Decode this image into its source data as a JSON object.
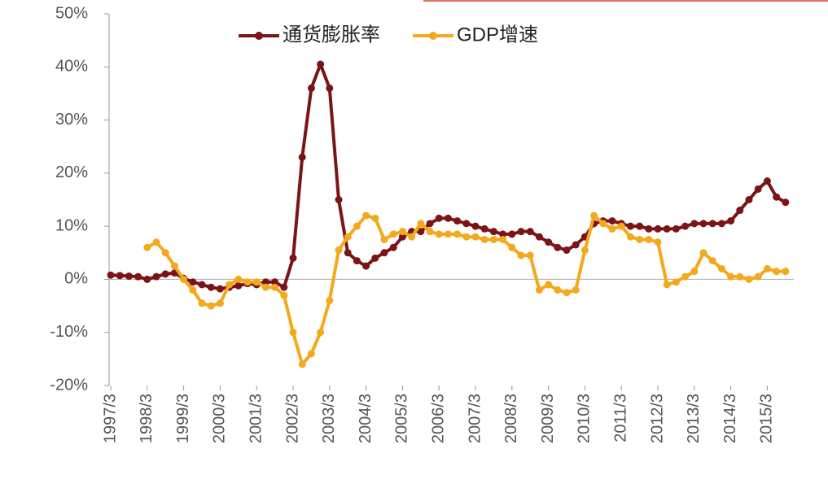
{
  "chart_data": {
    "type": "line",
    "categories": [
      "1997/3",
      null,
      null,
      null,
      "1998/3",
      null,
      null,
      null,
      "1999/3",
      null,
      null,
      null,
      "2000/3",
      null,
      null,
      null,
      "2001/3",
      null,
      null,
      null,
      "2002/3",
      null,
      null,
      null,
      "2003/3",
      null,
      null,
      null,
      "2004/3",
      null,
      null,
      null,
      "2005/3",
      null,
      null,
      null,
      "2006/3",
      null,
      null,
      null,
      "2007/3",
      null,
      null,
      null,
      "2008/3",
      null,
      null,
      null,
      "2009/3",
      null,
      null,
      null,
      "2010/3",
      null,
      null,
      null,
      "2011/3",
      null,
      null,
      null,
      "2012/3",
      null,
      null,
      null,
      "2013/3",
      null,
      null,
      null,
      "2014/3",
      null,
      null,
      null,
      "2015/3",
      null,
      null
    ],
    "series": [
      {
        "name": "通货膨胀率",
        "color": "#7b1416",
        "values": [
          0.8,
          0.7,
          0.6,
          0.5,
          0,
          0.5,
          1,
          1.2,
          0.2,
          -0.5,
          -1,
          -1.5,
          -1.8,
          -1.5,
          -1.2,
          -0.8,
          -1,
          -0.5,
          -0.5,
          -1.5,
          4,
          23,
          36,
          40.5,
          36,
          15,
          5,
          3.5,
          2.5,
          4,
          5,
          6,
          8,
          9,
          9,
          10.5,
          11.5,
          11.5,
          11,
          10.5,
          10,
          9.5,
          9,
          8.5,
          8.5,
          9,
          9,
          8,
          7,
          6,
          5.5,
          6.5,
          8,
          10.5,
          11,
          11,
          10.5,
          10,
          10,
          9.5,
          9.5,
          9.5,
          9.5,
          10,
          10.5,
          10.5,
          10.5,
          10.5,
          11,
          13,
          15,
          17,
          18.5,
          15.5,
          14.5
        ]
      },
      {
        "name": "GDP增速",
        "color": "#f4a81c",
        "values": [
          null,
          null,
          null,
          null,
          6,
          7,
          5,
          2.5,
          0,
          -2,
          -4.5,
          -5,
          -4.5,
          -1,
          0,
          -0.5,
          -0.5,
          -1.5,
          -1.5,
          -3,
          -10,
          -16,
          -14,
          -10,
          -4,
          5.5,
          8,
          10,
          12,
          11.5,
          7.5,
          8.5,
          9,
          8,
          10.5,
          9,
          8.5,
          8.5,
          8.5,
          8,
          8,
          7.5,
          7.5,
          7.5,
          6,
          4.5,
          4.5,
          -2,
          -1,
          -2,
          -2.5,
          -2,
          5.5,
          12,
          10.5,
          9.5,
          10,
          8,
          7.5,
          7.5,
          7,
          -1,
          -0.5,
          0.5,
          1.5,
          5,
          3.5,
          2,
          0.5,
          0.5,
          0,
          0.5,
          2,
          1.5,
          1.5
        ]
      }
    ],
    "ylim": [
      -20,
      50
    ],
    "yticks": [
      {
        "value": -20,
        "label": "-20%"
      },
      {
        "value": -10,
        "label": "-10%"
      },
      {
        "value": 0,
        "label": "0%"
      },
      {
        "value": 10,
        "label": "10%"
      },
      {
        "value": 20,
        "label": "20%"
      },
      {
        "value": 30,
        "label": "30%"
      },
      {
        "value": 40,
        "label": "40%"
      },
      {
        "value": 50,
        "label": "50%"
      }
    ],
    "legend": "top"
  }
}
